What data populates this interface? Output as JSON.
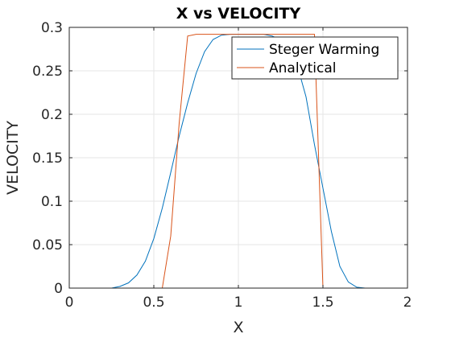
{
  "chart_data": {
    "type": "line",
    "title": "X vs VELOCITY",
    "xlabel": "X",
    "ylabel": "VELOCITY",
    "xlim": [
      0,
      2
    ],
    "ylim": [
      0,
      0.3
    ],
    "xticks": [
      "0",
      "0.5",
      "1",
      "1.5",
      "2"
    ],
    "yticks": [
      "0",
      "0.05",
      "0.1",
      "0.15",
      "0.2",
      "0.25",
      "0.3"
    ],
    "grid": true,
    "legend_position": "top-right",
    "series": [
      {
        "name": "Steger Warming",
        "color": "#0072BD",
        "x": [
          0,
          0.05,
          0.1,
          0.15,
          0.2,
          0.25,
          0.3,
          0.35,
          0.4,
          0.45,
          0.5,
          0.55,
          0.6,
          0.65,
          0.7,
          0.75,
          0.8,
          0.85,
          0.9,
          0.95,
          1.0,
          1.05,
          1.1,
          1.15,
          1.2,
          1.25,
          1.3,
          1.35,
          1.4,
          1.45,
          1.5,
          1.55,
          1.6,
          1.65,
          1.7,
          1.75,
          1.8,
          1.85,
          1.9,
          1.95,
          2.0
        ],
        "y": [
          0,
          0,
          0,
          0,
          0,
          0,
          0.002,
          0.006,
          0.015,
          0.031,
          0.057,
          0.092,
          0.133,
          0.175,
          0.213,
          0.247,
          0.272,
          0.286,
          0.291,
          0.292,
          0.292,
          0.292,
          0.292,
          0.292,
          0.29,
          0.286,
          0.275,
          0.255,
          0.22,
          0.165,
          0.115,
          0.065,
          0.025,
          0.007,
          0.001,
          0,
          0,
          0,
          0,
          0,
          0
        ]
      },
      {
        "name": "Analytical",
        "color": "#D95319",
        "x": [
          0,
          0.55,
          0.6,
          0.65,
          0.7,
          0.75,
          1.45,
          1.5,
          2.0
        ],
        "y": [
          0,
          0,
          0.06,
          0.19,
          0.29,
          0.292,
          0.292,
          0,
          0
        ]
      }
    ]
  }
}
